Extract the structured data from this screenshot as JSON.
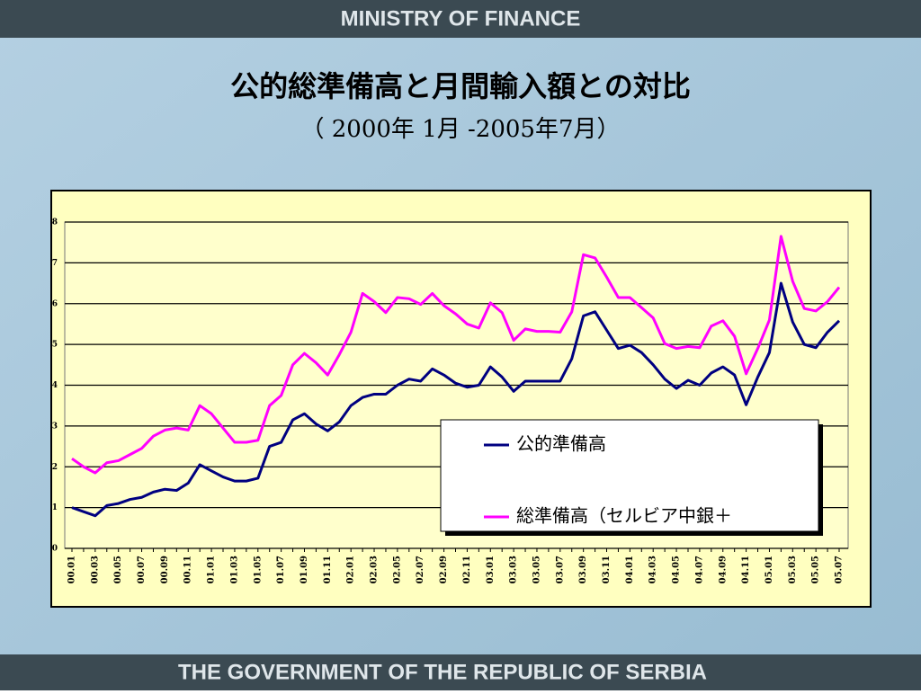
{
  "header": "MINISTRY OF FINANCE",
  "footer": "THE GOVERNMENT OF THE REPUBLIC OF SERBIA",
  "chart_data": {
    "type": "line",
    "title": "公的総準備高と月間輸入額との対比",
    "subtitle": "（ 2000年 1月 -2005年7月）",
    "categories": [
      "00.01",
      null,
      "00.03",
      null,
      "00.05",
      null,
      "00.07",
      null,
      "00.09",
      null,
      "00.11",
      null,
      "01.01",
      null,
      "01.03",
      null,
      "01.05",
      null,
      "01.07",
      null,
      "01.09",
      null,
      "01.11",
      null,
      "02.01",
      null,
      "02.03",
      null,
      "02.05",
      null,
      "02.07",
      null,
      "02.09",
      null,
      "02.11",
      null,
      "03.01",
      null,
      "03.03",
      null,
      "03.05",
      null,
      "03.07",
      null,
      "03.09",
      null,
      "03.11",
      null,
      "04.01",
      null,
      "04.03",
      null,
      "04.05",
      null,
      "04.07",
      null,
      "04.09",
      null,
      "04.11",
      null,
      "05.01",
      null,
      "05.03",
      null,
      "05.05",
      null,
      "05.07"
    ],
    "series": [
      {
        "name": "公的準備高",
        "color": "#000080",
        "values": [
          1.0,
          0.9,
          0.8,
          1.05,
          1.1,
          1.2,
          1.25,
          1.38,
          1.45,
          1.42,
          1.6,
          2.05,
          1.9,
          1.75,
          1.65,
          1.65,
          1.72,
          2.5,
          2.6,
          3.15,
          3.3,
          3.05,
          2.88,
          3.1,
          3.5,
          3.7,
          3.78,
          3.78,
          4.0,
          4.15,
          4.1,
          4.4,
          4.25,
          4.05,
          3.95,
          4.0,
          4.45,
          4.2,
          3.85,
          4.1,
          4.1,
          4.1,
          4.1,
          4.65,
          5.7,
          5.8,
          5.35,
          4.9,
          4.98,
          4.8,
          4.5,
          4.15,
          3.92,
          4.12,
          4.0,
          4.3,
          4.45,
          4.25,
          3.52,
          4.2,
          4.8,
          6.5,
          5.55,
          5.0,
          4.92,
          5.3,
          5.58
        ]
      },
      {
        "name": "総準備高（セルビア中銀＋",
        "color": "#ff00ff",
        "values": [
          2.2,
          2.0,
          1.85,
          2.1,
          2.15,
          2.3,
          2.45,
          2.75,
          2.9,
          2.95,
          2.9,
          3.5,
          3.3,
          2.95,
          2.6,
          2.6,
          2.65,
          3.5,
          3.75,
          4.5,
          4.78,
          4.55,
          4.25,
          4.75,
          5.3,
          6.25,
          6.05,
          5.78,
          6.15,
          6.12,
          5.98,
          6.25,
          5.95,
          5.75,
          5.5,
          5.4,
          6.02,
          5.78,
          5.1,
          5.38,
          5.32,
          5.32,
          5.3,
          5.8,
          7.2,
          7.12,
          6.65,
          6.15,
          6.15,
          5.9,
          5.65,
          5.02,
          4.9,
          4.95,
          4.92,
          5.45,
          5.58,
          5.2,
          4.28,
          4.9,
          5.6,
          7.65,
          6.55,
          5.88,
          5.82,
          6.05,
          6.4
        ]
      }
    ],
    "ylim": [
      0,
      8
    ],
    "yticks": [
      0,
      1,
      2,
      3,
      4,
      5,
      6,
      7,
      8
    ],
    "grid": true
  }
}
